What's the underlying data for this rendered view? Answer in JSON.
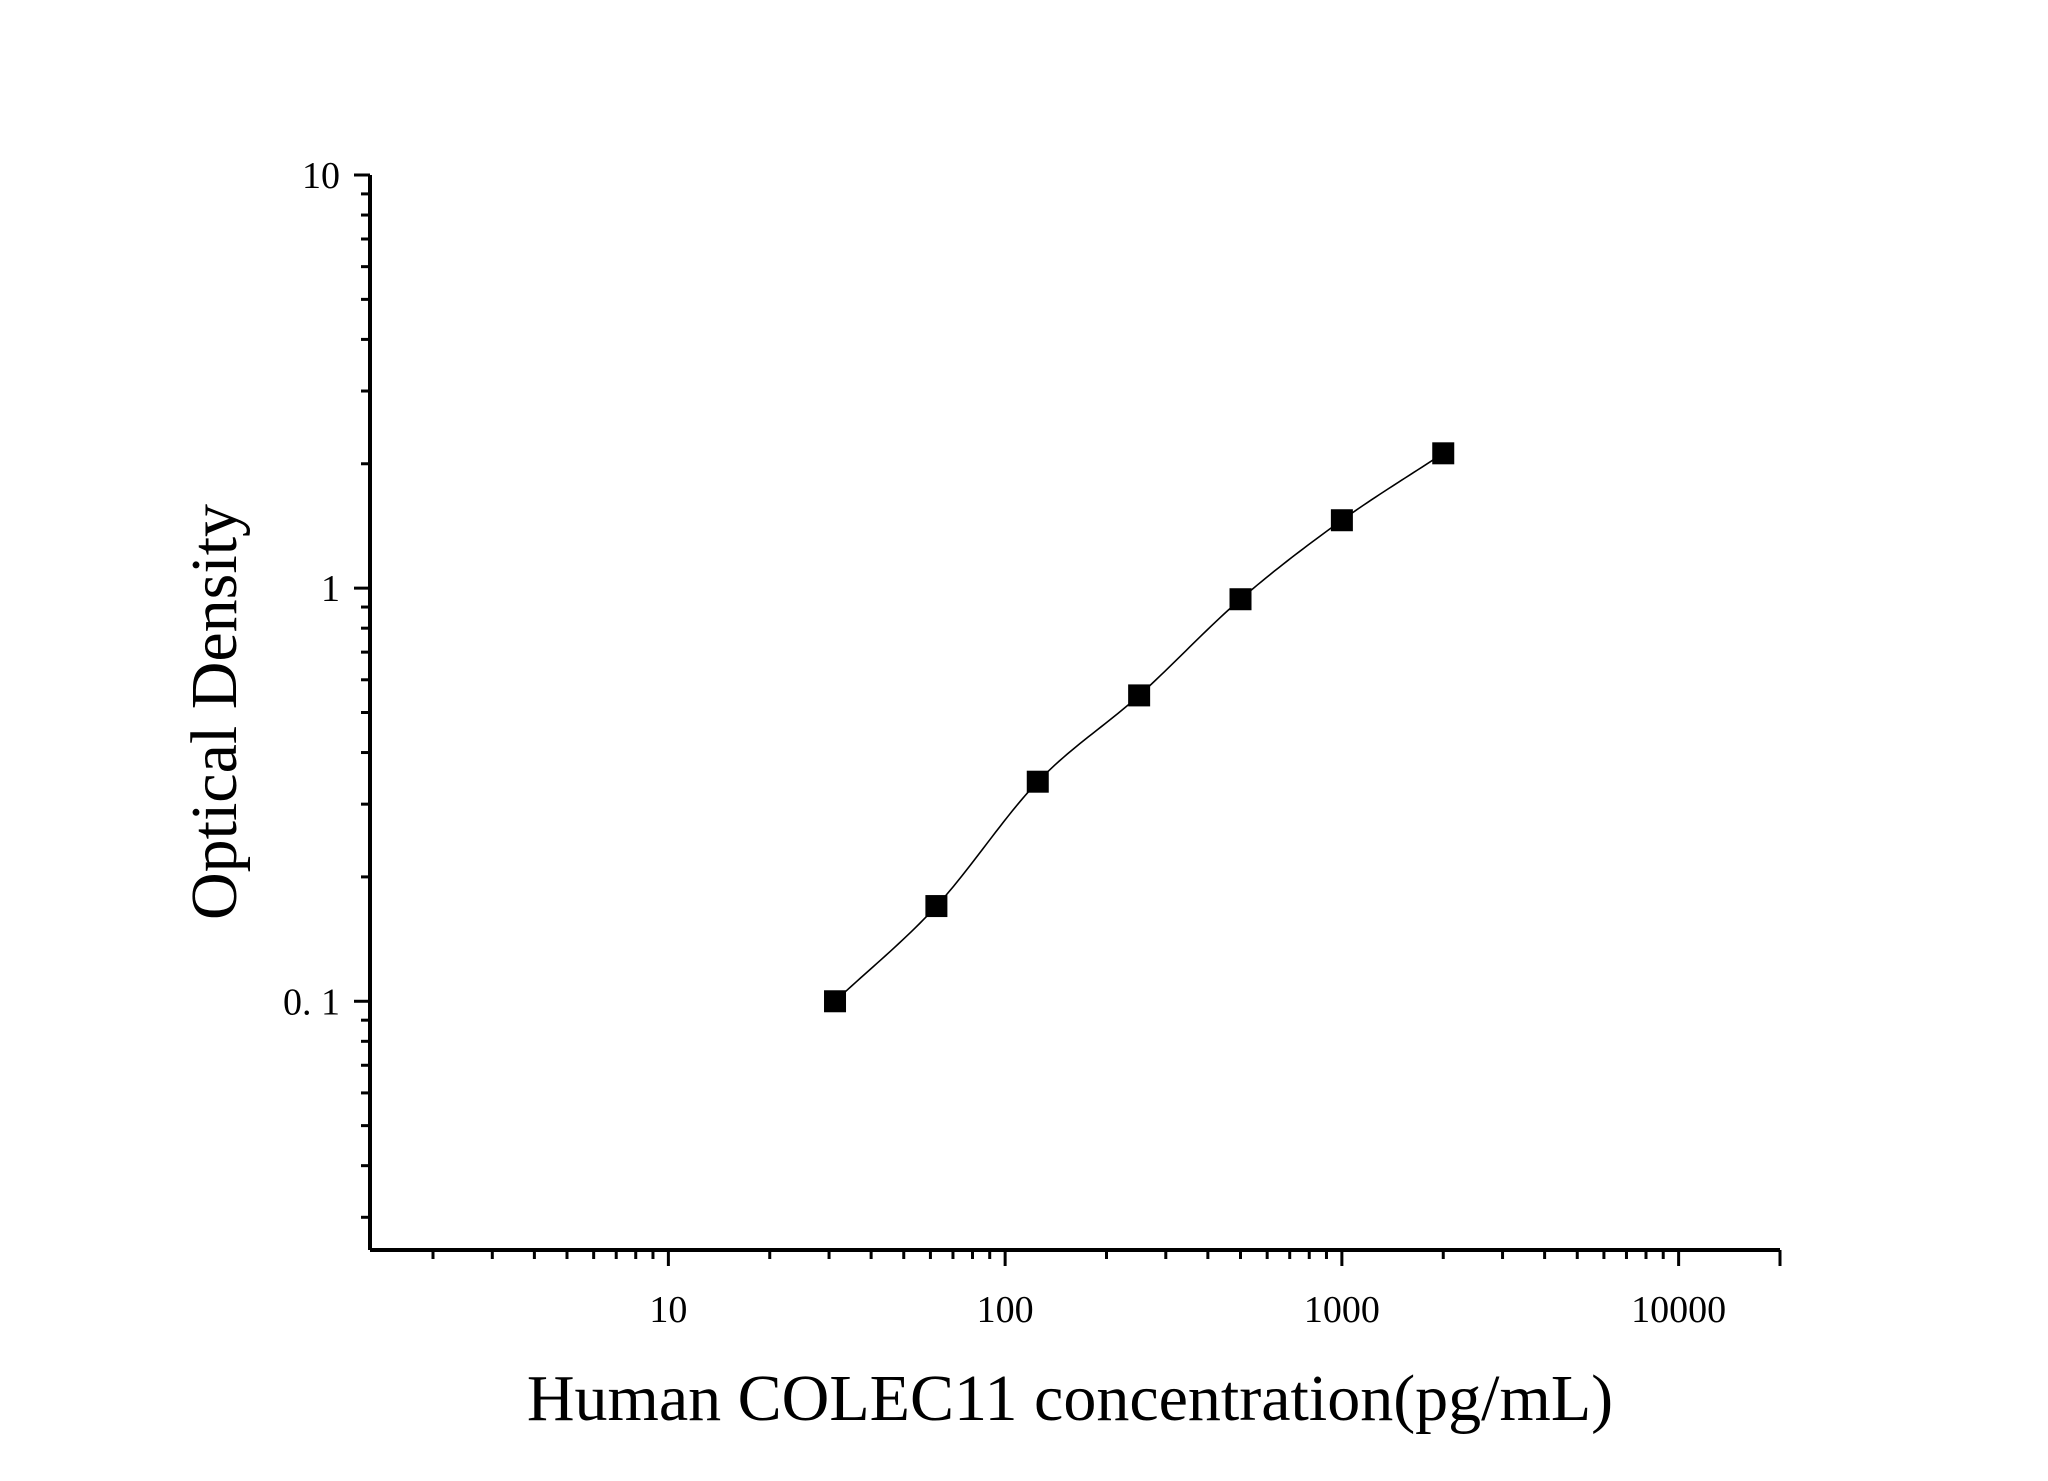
{
  "chart_data": {
    "type": "scatter",
    "title": "",
    "xlabel": "Human COLEC11 concentration(pg/mL)",
    "ylabel": "Optical Density",
    "xscale": "log",
    "yscale": "log",
    "xlim": [
      1.3,
      20000
    ],
    "ylim": [
      0.025,
      10
    ],
    "x_ticks": [
      {
        "value": 10,
        "label": "10"
      },
      {
        "value": 100,
        "label": "100"
      },
      {
        "value": 1000,
        "label": "1000"
      },
      {
        "value": 10000,
        "label": "10000"
      }
    ],
    "y_ticks": [
      {
        "value": 0.1,
        "label": "0. 1"
      },
      {
        "value": 1,
        "label": "1"
      },
      {
        "value": 10,
        "label": "10"
      }
    ],
    "grid": false,
    "legend": "none",
    "marker": "square",
    "colors": {
      "marker": "#000000",
      "line": "#000000",
      "axis": "#000000"
    },
    "series": [
      {
        "x": [
          31.25,
          62.5,
          125,
          250,
          500,
          1000,
          2000
        ],
        "y": [
          0.1,
          0.17,
          0.34,
          0.55,
          0.94,
          1.46,
          2.12
        ],
        "fit_line": true
      }
    ]
  }
}
